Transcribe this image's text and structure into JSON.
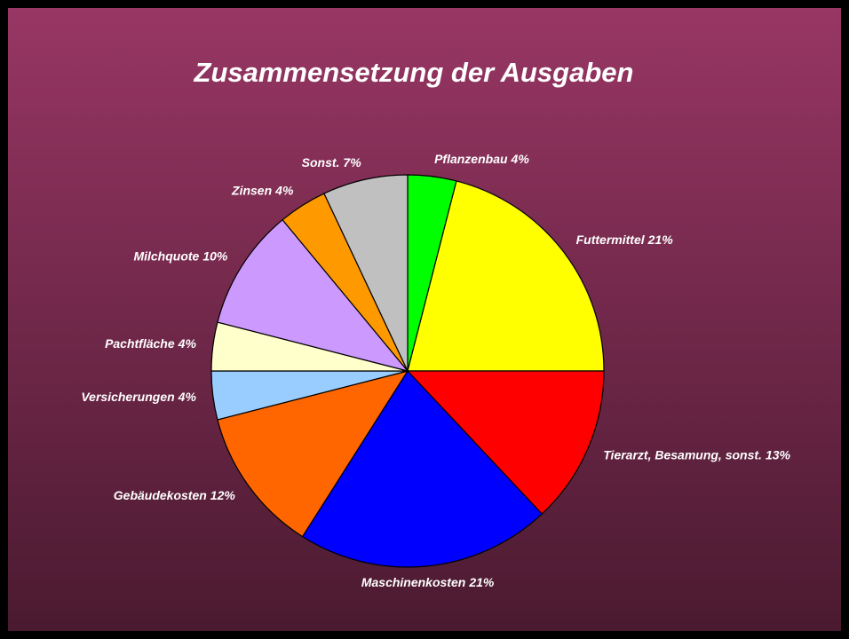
{
  "chart_data": {
    "type": "pie",
    "title": "Zusammensetzung der Ausgaben",
    "categories": [
      "Pflanzenbau",
      "Futtermittel",
      "Tierarzt, Besamung, sonst.",
      "Maschinenkosten",
      "Gebäudekosten",
      "Versicherungen",
      "Pachtfläche",
      "Milchquote",
      "Zinsen",
      "Sonst."
    ],
    "values": [
      4,
      21,
      13,
      21,
      12,
      4,
      4,
      10,
      4,
      7
    ],
    "value_labels": [
      "4%",
      "21%",
      "13%",
      "21%",
      "12%",
      "4%",
      "4%",
      "10%",
      "4%",
      "7%"
    ],
    "colors": [
      "#00ff00",
      "#ffff00",
      "#ff0000",
      "#0000ff",
      "#ff6600",
      "#99ccff",
      "#ffffcc",
      "#cc99ff",
      "#ff9900",
      "#c0c0c0"
    ]
  }
}
